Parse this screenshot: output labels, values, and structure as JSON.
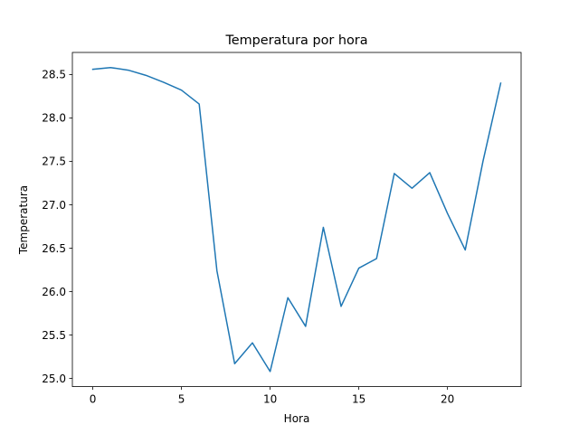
{
  "chart_data": {
    "type": "line",
    "title": "Temperatura por hora",
    "xlabel": "Hora",
    "ylabel": "Temperatura",
    "x": [
      0,
      1,
      2,
      3,
      4,
      5,
      6,
      7,
      8,
      9,
      10,
      11,
      12,
      13,
      14,
      15,
      16,
      17,
      18,
      19,
      20,
      21,
      22,
      23
    ],
    "series": [
      {
        "values": [
          28.56,
          28.58,
          28.55,
          28.49,
          28.41,
          28.32,
          28.16,
          26.24,
          25.17,
          25.41,
          25.08,
          25.93,
          25.6,
          26.74,
          25.83,
          26.27,
          26.38,
          27.36,
          27.19,
          27.37,
          26.9,
          26.48,
          27.5,
          28.4
        ],
        "color": "#1f77b4"
      }
    ],
    "xlim": [
      -1.15,
      24.15
    ],
    "ylim": [
      24.906,
      28.754
    ],
    "xticks": [
      0,
      5,
      10,
      15,
      20
    ],
    "xtick_labels": [
      "0",
      "5",
      "10",
      "15",
      "20"
    ],
    "yticks": [
      25.0,
      25.5,
      26.0,
      26.5,
      27.0,
      27.5,
      28.0,
      28.5
    ],
    "ytick_labels": [
      "25.0",
      "25.5",
      "26.0",
      "26.5",
      "27.0",
      "27.5",
      "28.0",
      "28.5"
    ],
    "grid": false,
    "legend": false
  }
}
